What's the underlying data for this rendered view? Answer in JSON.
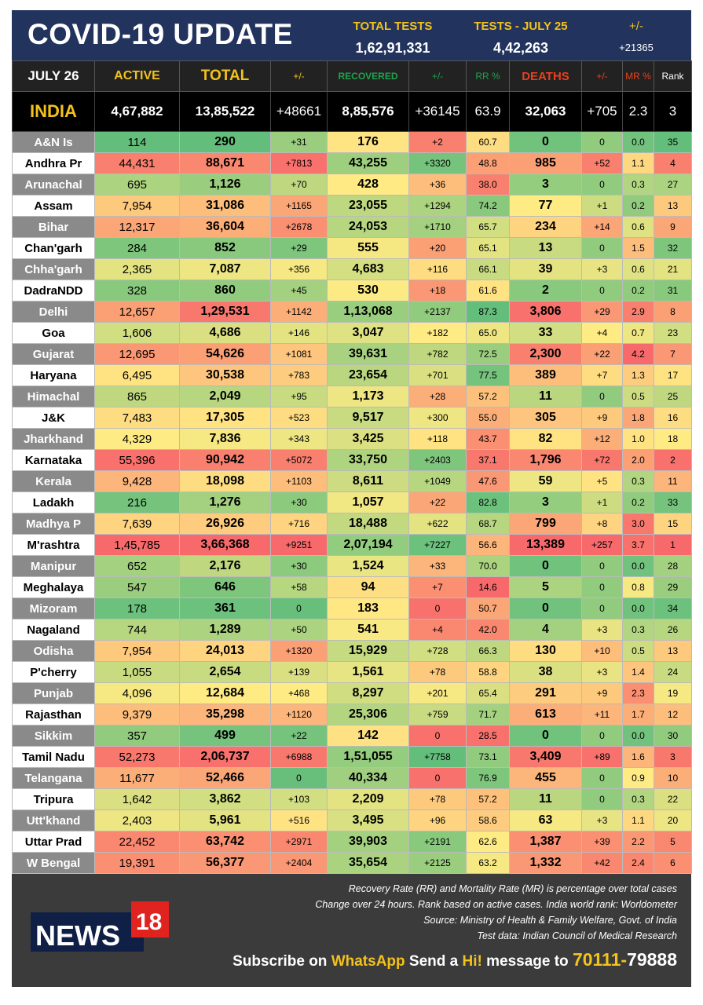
{
  "header": {
    "title": "COVID-19 UPDATE",
    "total_tests_label": "TOTAL TESTS",
    "total_tests": "1,62,91,331",
    "tests_day_label": "TESTS - JULY  25",
    "tests_day": "4,42,263",
    "change_label": "+/-",
    "change": "+21365"
  },
  "columns": {
    "date": "JULY 26",
    "active": "ACTIVE",
    "total": "TOTAL",
    "pm1": "+/-",
    "recovered": "RECOVERED",
    "pm2": "+/-",
    "rr": "RR %",
    "deaths": "DEATHS",
    "pm3": "+/-",
    "mr": "MR %",
    "rank": "Rank"
  },
  "india": [
    "INDIA",
    "4,67,882",
    "13,85,522",
    "+48661",
    "8,85,576",
    "+36145",
    "63.9",
    "32,063",
    "+705",
    "2.3",
    "3"
  ],
  "chart_data": {
    "type": "table",
    "rows": [
      [
        "A&N Is",
        "114",
        "290",
        "+31",
        "176",
        "+2",
        "60.7",
        "0",
        "0",
        "0.0",
        "35"
      ],
      [
        "Andhra Pr",
        "44,431",
        "88,671",
        "+7813",
        "43,255",
        "+3320",
        "48.8",
        "985",
        "+52",
        "1.1",
        "4"
      ],
      [
        "Arunachal",
        "695",
        "1,126",
        "+70",
        "428",
        "+36",
        "38.0",
        "3",
        "0",
        "0.3",
        "27"
      ],
      [
        "Assam",
        "7,954",
        "31,086",
        "+1165",
        "23,055",
        "+1294",
        "74.2",
        "77",
        "+1",
        "0.2",
        "13"
      ],
      [
        "Bihar",
        "12,317",
        "36,604",
        "+2678",
        "24,053",
        "+1710",
        "65.7",
        "234",
        "+14",
        "0.6",
        "9"
      ],
      [
        "Chan'garh",
        "284",
        "852",
        "+29",
        "555",
        "+20",
        "65.1",
        "13",
        "0",
        "1.5",
        "32"
      ],
      [
        "Chha'garh",
        "2,365",
        "7,087",
        "+356",
        "4,683",
        "+116",
        "66.1",
        "39",
        "+3",
        "0.6",
        "21"
      ],
      [
        "DadraNDD",
        "328",
        "860",
        "+45",
        "530",
        "+18",
        "61.6",
        "2",
        "0",
        "0.2",
        "31"
      ],
      [
        "Delhi",
        "12,657",
        "1,29,531",
        "+1142",
        "1,13,068",
        "+2137",
        "87.3",
        "3,806",
        "+29",
        "2.9",
        "8"
      ],
      [
        "Goa",
        "1,606",
        "4,686",
        "+146",
        "3,047",
        "+182",
        "65.0",
        "33",
        "+4",
        "0.7",
        "23"
      ],
      [
        "Gujarat",
        "12,695",
        "54,626",
        "+1081",
        "39,631",
        "+782",
        "72.5",
        "2,300",
        "+22",
        "4.2",
        "7"
      ],
      [
        "Haryana",
        "6,495",
        "30,538",
        "+783",
        "23,654",
        "+701",
        "77.5",
        "389",
        "+7",
        "1.3",
        "17"
      ],
      [
        "Himachal",
        "865",
        "2,049",
        "+95",
        "1,173",
        "+28",
        "57.2",
        "11",
        "0",
        "0.5",
        "25"
      ],
      [
        "J&K",
        "7,483",
        "17,305",
        "+523",
        "9,517",
        "+300",
        "55.0",
        "305",
        "+9",
        "1.8",
        "16"
      ],
      [
        "Jharkhand",
        "4,329",
        "7,836",
        "+343",
        "3,425",
        "+118",
        "43.7",
        "82",
        "+12",
        "1.0",
        "18"
      ],
      [
        "Karnataka",
        "55,396",
        "90,942",
        "+5072",
        "33,750",
        "+2403",
        "37.1",
        "1,796",
        "+72",
        "2.0",
        "2"
      ],
      [
        "Kerala",
        "9,428",
        "18,098",
        "+1103",
        "8,611",
        "+1049",
        "47.6",
        "59",
        "+5",
        "0.3",
        "11"
      ],
      [
        "Ladakh",
        "216",
        "1,276",
        "+30",
        "1,057",
        "+22",
        "82.8",
        "3",
        "+1",
        "0.2",
        "33"
      ],
      [
        "Madhya P",
        "7,639",
        "26,926",
        "+716",
        "18,488",
        "+622",
        "68.7",
        "799",
        "+8",
        "3.0",
        "15"
      ],
      [
        "M'rashtra",
        "1,45,785",
        "3,66,368",
        "+9251",
        "2,07,194",
        "+7227",
        "56.6",
        "13,389",
        "+257",
        "3.7",
        "1"
      ],
      [
        "Manipur",
        "652",
        "2,176",
        "+30",
        "1,524",
        "+33",
        "70.0",
        "0",
        "0",
        "0.0",
        "28"
      ],
      [
        "Meghalaya",
        "547",
        "646",
        "+58",
        "94",
        "+7",
        "14.6",
        "5",
        "0",
        "0.8",
        "29"
      ],
      [
        "Mizoram",
        "178",
        "361",
        "0",
        "183",
        "0",
        "50.7",
        "0",
        "0",
        "0.0",
        "34"
      ],
      [
        "Nagaland",
        "744",
        "1,289",
        "+50",
        "541",
        "+4",
        "42.0",
        "4",
        "+3",
        "0.3",
        "26"
      ],
      [
        "Odisha",
        "7,954",
        "24,013",
        "+1320",
        "15,929",
        "+728",
        "66.3",
        "130",
        "+10",
        "0.5",
        "13"
      ],
      [
        "P'cherry",
        "1,055",
        "2,654",
        "+139",
        "1,561",
        "+78",
        "58.8",
        "38",
        "+3",
        "1.4",
        "24"
      ],
      [
        "Punjab",
        "4,096",
        "12,684",
        "+468",
        "8,297",
        "+201",
        "65.4",
        "291",
        "+9",
        "2.3",
        "19"
      ],
      [
        "Rajasthan",
        "9,379",
        "35,298",
        "+1120",
        "25,306",
        "+759",
        "71.7",
        "613",
        "+11",
        "1.7",
        "12"
      ],
      [
        "Sikkim",
        "357",
        "499",
        "+22",
        "142",
        "0",
        "28.5",
        "0",
        "0",
        "0.0",
        "30"
      ],
      [
        "Tamil Nadu",
        "52,273",
        "2,06,737",
        "+6988",
        "1,51,055",
        "+7758",
        "73.1",
        "3,409",
        "+89",
        "1.6",
        "3"
      ],
      [
        "Telangana",
        "11,677",
        "52,466",
        "0",
        "40,334",
        "0",
        "76.9",
        "455",
        "0",
        "0.9",
        "10"
      ],
      [
        "Tripura",
        "1,642",
        "3,862",
        "+103",
        "2,209",
        "+78",
        "57.2",
        "11",
        "0",
        "0.3",
        "22"
      ],
      [
        "Utt'khand",
        "2,403",
        "5,961",
        "+516",
        "3,495",
        "+96",
        "58.6",
        "63",
        "+3",
        "1.1",
        "20"
      ],
      [
        "Uttar Prad",
        "22,452",
        "63,742",
        "+2971",
        "39,903",
        "+2191",
        "62.6",
        "1,387",
        "+39",
        "2.2",
        "5"
      ],
      [
        "W Bengal",
        "19,391",
        "56,377",
        "+2404",
        "35,654",
        "+2125",
        "63.2",
        "1,332",
        "+42",
        "2.4",
        "6"
      ]
    ]
  },
  "footer": {
    "note1": "Recovery Rate (RR) and Mortality Rate (MR) is percentage over total cases",
    "note2": "Change over 24 hours. Rank based on active cases. India world rank: Worldometer",
    "note3": "Source: Ministry of Health & Family Welfare, Govt. of India",
    "note4": "Test data: Indian Council of Medical Research",
    "sub1": "Subscribe on ",
    "sub2": "WhatsApp",
    "sub3": " Send a ",
    "sub4": "Hi!",
    "sub5": " message to ",
    "sub6": "70111-",
    "sub7": "79888",
    "logo": "NEWS 18"
  },
  "colors": {
    "green": "#63be7b",
    "yellow": "#ffeb84",
    "red": "#f8696b",
    "navy": "#22335e"
  }
}
